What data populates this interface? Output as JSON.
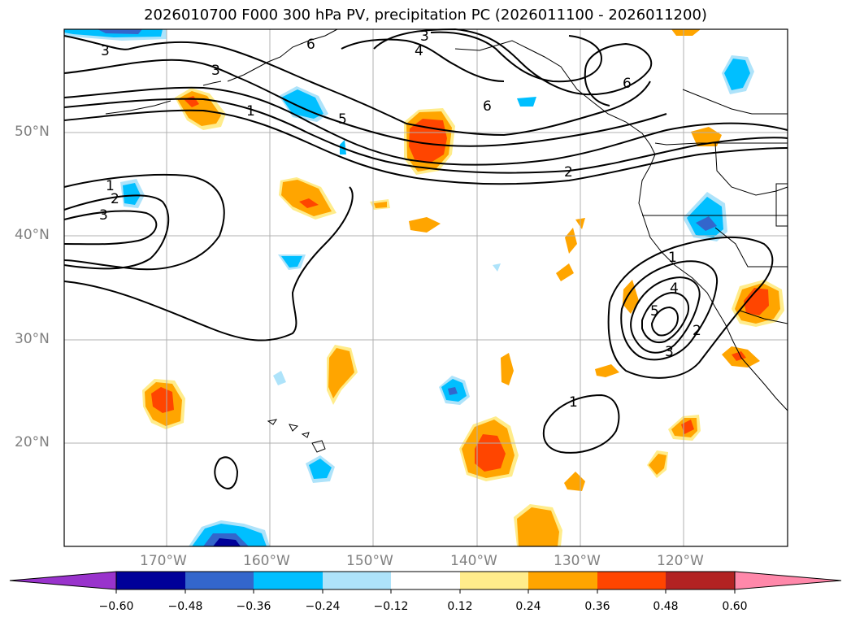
{
  "title": "2026010700 F000 300 hPa PV, precipitation PC (2026011100 - 2026011200)",
  "lat_labels": [
    "50°N",
    "40°N",
    "30°N",
    "20°N"
  ],
  "lon_labels": [
    "170°W",
    "160°W",
    "150°W",
    "140°W",
    "130°W",
    "120°W"
  ],
  "contour_labels": [
    "3",
    "6",
    "3",
    "4",
    "3",
    "1",
    "5",
    "6",
    "6",
    "2",
    "1",
    "2",
    "3",
    "1",
    "4",
    "5",
    "2",
    "3",
    "1"
  ],
  "colorbar": {
    "ticks": [
      "−0.60",
      "−0.48",
      "−0.36",
      "−0.24",
      "−0.12",
      "0.12",
      "0.24",
      "0.36",
      "0.48",
      "0.60"
    ],
    "colors": [
      "#9933cc",
      "#000099",
      "#3366cc",
      "#00bfff",
      "#aee3fa",
      "#ffffff",
      "#ffec8b",
      "#ffa500",
      "#ff4500",
      "#b22222",
      "#ff88aa"
    ]
  },
  "colors": {
    "blue_mid": "#00bfff",
    "blue_light": "#aee3fa",
    "blue_deep": "#3366cc",
    "yellow": "#ffec8b",
    "orange": "#ffa500",
    "red": "#ff4500"
  }
}
